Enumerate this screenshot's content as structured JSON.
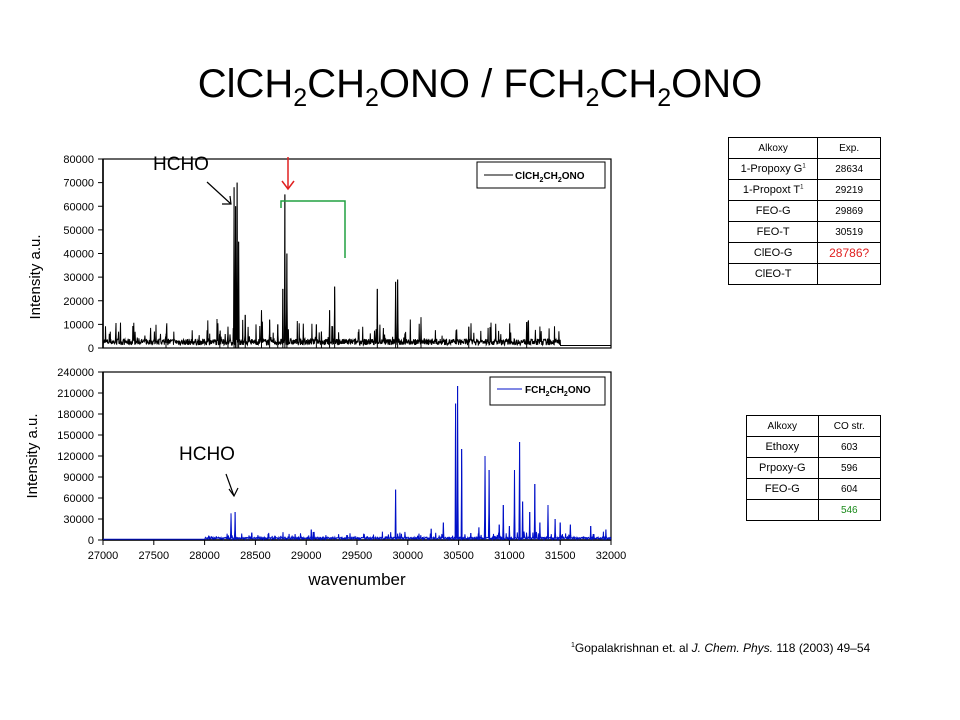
{
  "title": {
    "parts": [
      {
        "t": "ClCH",
        "sub": false
      },
      {
        "t": "2",
        "sub": true
      },
      {
        "t": "CH",
        "sub": false
      },
      {
        "t": "2",
        "sub": true
      },
      {
        "t": "ONO / FCH",
        "sub": false
      },
      {
        "t": "2",
        "sub": true
      },
      {
        "t": "CH",
        "sub": false
      },
      {
        "t": "2",
        "sub": true
      },
      {
        "t": "ONO",
        "sub": false
      }
    ]
  },
  "colors": {
    "top_trace": "#000000",
    "bottom_trace": "#0010c8",
    "arrow_red": "#e02020",
    "bracket_green": "#20a040",
    "highlight_red": "#e02020",
    "highlight_green": "#1a8a1a"
  },
  "annotations": {
    "hcho_top": "HCHO",
    "hcho_bottom": "HCHO"
  },
  "table1": {
    "header": [
      "Alkoxy",
      "Exp."
    ],
    "rows": [
      {
        "label": "1-Propoxy G",
        "sup": "1",
        "value": "28634",
        "highlight": ""
      },
      {
        "label": "1-Propoxt T",
        "sup": "1",
        "value": "29219",
        "highlight": ""
      },
      {
        "label": "FEO-G",
        "sup": "",
        "value": "29869",
        "highlight": ""
      },
      {
        "label": "FEO-T",
        "sup": "",
        "value": "30519",
        "highlight": ""
      },
      {
        "label": "ClEO-G",
        "sup": "",
        "value": "28786?",
        "highlight": "red"
      },
      {
        "label": "ClEO-T",
        "sup": "",
        "value": "",
        "highlight": ""
      }
    ]
  },
  "table2": {
    "header": [
      "Alkoxy",
      "CO str."
    ],
    "rows": [
      {
        "label": "Ethoxy",
        "value": "603",
        "highlight": ""
      },
      {
        "label": "Prpoxy-G",
        "value": "596",
        "highlight": ""
      },
      {
        "label": "FEO-G",
        "value": "604",
        "highlight": ""
      },
      {
        "label": "",
        "value": "546",
        "highlight": "green"
      }
    ]
  },
  "reference": {
    "sup": "1",
    "authors": "Gopalakrishnan et. al ",
    "journal": "J. Chem. Phys.",
    "rest": " 118 (2003) 49–54"
  },
  "chart_data": [
    {
      "type": "line",
      "title": "",
      "xlabel": "",
      "ylabel": "Intensity a.u.",
      "xlim": [
        27000,
        32000
      ],
      "ylim": [
        0,
        80000
      ],
      "yticks": [
        0,
        10000,
        20000,
        30000,
        40000,
        50000,
        60000,
        70000,
        80000
      ],
      "ytick_labels": [
        "0",
        "10000",
        "20000",
        "30000",
        "40000",
        "50000",
        "60000",
        "70000",
        "80000"
      ],
      "legend": {
        "position": "top-right",
        "entries": [
          {
            "parts": [
              {
                "t": "ClCH",
                "sub": false
              },
              {
                "t": "2",
                "sub": true
              },
              {
                "t": "CH",
                "sub": false
              },
              {
                "t": "2",
                "sub": true
              },
              {
                "t": "ONO",
                "sub": false
              }
            ]
          }
        ]
      },
      "series": [
        {
          "baseline": 3000,
          "noise_end": 31500,
          "peaks": [
            {
              "x": 27620,
              "y": 6000
            },
            {
              "x": 28150,
              "y": 5000
            },
            {
              "x": 28230,
              "y": 9000
            },
            {
              "x": 28290,
              "y": 68000
            },
            {
              "x": 28305,
              "y": 60000
            },
            {
              "x": 28320,
              "y": 70000
            },
            {
              "x": 28335,
              "y": 45000
            },
            {
              "x": 28400,
              "y": 14000
            },
            {
              "x": 28560,
              "y": 16000
            },
            {
              "x": 28640,
              "y": 12000
            },
            {
              "x": 28720,
              "y": 10000
            },
            {
              "x": 28770,
              "y": 25000
            },
            {
              "x": 28790,
              "y": 65000
            },
            {
              "x": 28810,
              "y": 40000
            },
            {
              "x": 29100,
              "y": 10000
            },
            {
              "x": 29150,
              "y": 7000
            },
            {
              "x": 29230,
              "y": 16000
            },
            {
              "x": 29280,
              "y": 26000
            },
            {
              "x": 29700,
              "y": 25000
            },
            {
              "x": 29880,
              "y": 28000
            },
            {
              "x": 29900,
              "y": 29000
            },
            {
              "x": 30130,
              "y": 13000
            },
            {
              "x": 30600,
              "y": 9000
            },
            {
              "x": 31170,
              "y": 11000
            }
          ]
        }
      ]
    },
    {
      "type": "line",
      "title": "",
      "xlabel": "wavenumber",
      "ylabel": "Intensity a.u.",
      "xlim": [
        27000,
        32000
      ],
      "ylim": [
        0,
        240000
      ],
      "xticks": [
        27000,
        27500,
        28000,
        28500,
        29000,
        29500,
        30000,
        30500,
        31000,
        31500,
        32000
      ],
      "xtick_labels": [
        "27000",
        "27500",
        "28000",
        "28500",
        "29000",
        "29500",
        "30000",
        "30500",
        "31000",
        "31500",
        "32000"
      ],
      "yticks": [
        0,
        30000,
        60000,
        90000,
        120000,
        150000,
        180000,
        210000,
        240000
      ],
      "ytick_labels": [
        "0",
        "30000",
        "60000",
        "90000",
        "120000",
        "150000",
        "180000",
        "210000",
        "240000"
      ],
      "legend": {
        "position": "top-right",
        "entries": [
          {
            "parts": [
              {
                "t": "FCH",
                "sub": false
              },
              {
                "t": "2",
                "sub": true
              },
              {
                "t": "CH",
                "sub": false
              },
              {
                "t": "2",
                "sub": true
              },
              {
                "t": "ONO",
                "sub": false
              }
            ]
          }
        ]
      },
      "series": [
        {
          "baseline": 3000,
          "noise_start": 28000,
          "peaks": [
            {
              "x": 28260,
              "y": 38000
            },
            {
              "x": 28300,
              "y": 40000
            },
            {
              "x": 29050,
              "y": 15000
            },
            {
              "x": 29400,
              "y": 7000
            },
            {
              "x": 29880,
              "y": 72000
            },
            {
              "x": 30110,
              "y": 9000
            },
            {
              "x": 30230,
              "y": 16000
            },
            {
              "x": 30350,
              "y": 25000
            },
            {
              "x": 30470,
              "y": 195000
            },
            {
              "x": 30490,
              "y": 220000
            },
            {
              "x": 30530,
              "y": 130000
            },
            {
              "x": 30620,
              "y": 10000
            },
            {
              "x": 30700,
              "y": 18000
            },
            {
              "x": 30760,
              "y": 120000
            },
            {
              "x": 30800,
              "y": 100000
            },
            {
              "x": 30900,
              "y": 22000
            },
            {
              "x": 30940,
              "y": 50000
            },
            {
              "x": 31000,
              "y": 20000
            },
            {
              "x": 31050,
              "y": 100000
            },
            {
              "x": 31100,
              "y": 140000
            },
            {
              "x": 31130,
              "y": 55000
            },
            {
              "x": 31200,
              "y": 40000
            },
            {
              "x": 31250,
              "y": 80000
            },
            {
              "x": 31300,
              "y": 25000
            },
            {
              "x": 31380,
              "y": 50000
            },
            {
              "x": 31450,
              "y": 30000
            },
            {
              "x": 31500,
              "y": 25000
            },
            {
              "x": 31600,
              "y": 22000
            },
            {
              "x": 31800,
              "y": 20000
            },
            {
              "x": 31950,
              "y": 15000
            }
          ]
        }
      ]
    }
  ]
}
